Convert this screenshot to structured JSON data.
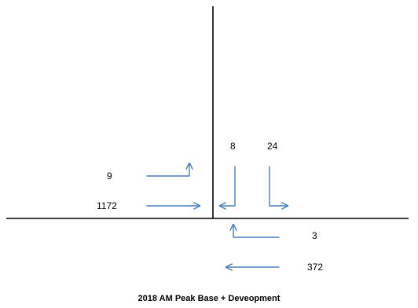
{
  "title": "2018 AM Peak Base + Deveopment",
  "arrow_color": "#4a7ebb",
  "movements": {
    "wb_left_up": {
      "volume": "9",
      "icon": "left-turn-arrow-up"
    },
    "eb_through": {
      "volume": "1172",
      "icon": "through-arrow-right"
    },
    "sb_left": {
      "volume": "8",
      "icon": "southbound-turn-arrow-left"
    },
    "sb_right": {
      "volume": "24",
      "icon": "southbound-turn-arrow-right"
    },
    "wb_left_turn": {
      "volume": "3",
      "icon": "left-turn-arrow-up"
    },
    "wb_through": {
      "volume": "372",
      "icon": "through-arrow-left"
    }
  }
}
